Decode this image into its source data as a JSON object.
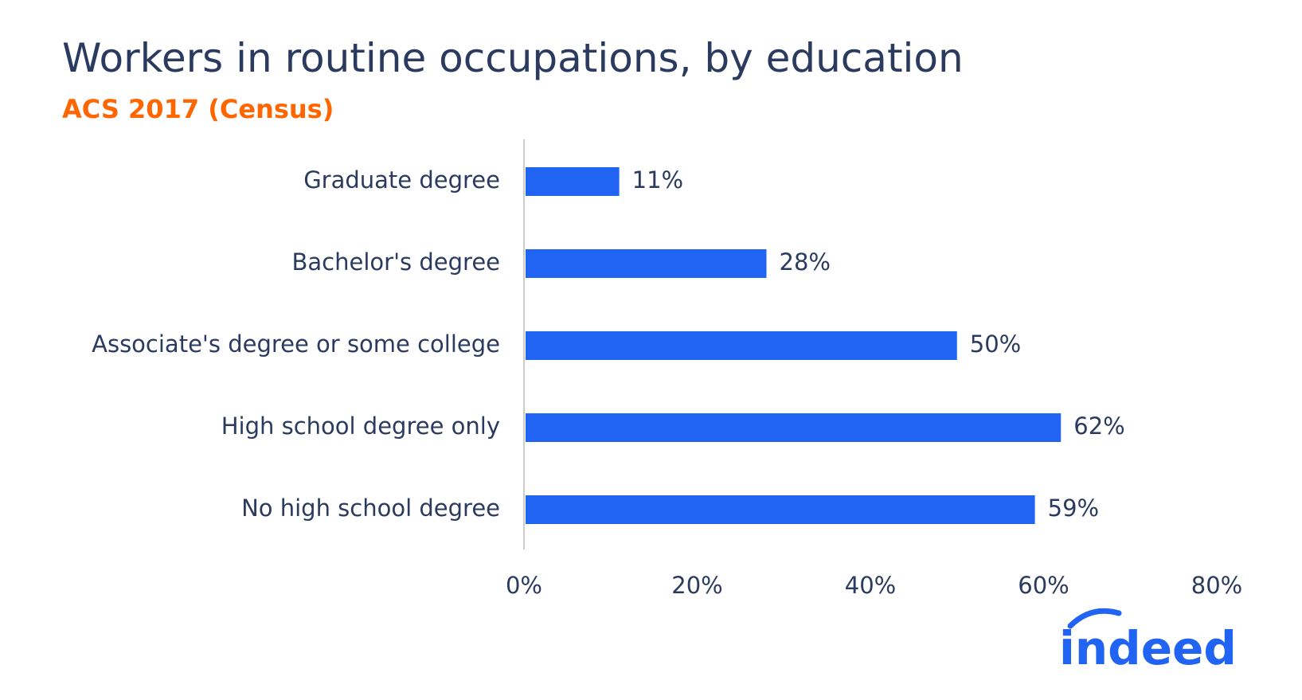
{
  "chart_data": {
    "type": "bar",
    "orientation": "horizontal",
    "title": "Workers in routine occupations, by education",
    "subtitle": "ACS 2017 (Census)",
    "categories": [
      "Graduate degree",
      "Bachelor's degree",
      "Associate's degree or some college",
      "High school degree only",
      "No high school degree"
    ],
    "values": [
      11,
      28,
      50,
      62,
      59
    ],
    "value_labels": [
      "11%",
      "28%",
      "50%",
      "62%",
      "59%"
    ],
    "xlim": [
      0,
      80
    ],
    "x_ticks": [
      0,
      20,
      40,
      60,
      80
    ],
    "x_tick_labels": [
      "0%",
      "20%",
      "40%",
      "60%",
      "80%"
    ],
    "grid": false,
    "bar_color": "#2164f3"
  },
  "brand": {
    "logo_text": "indeed",
    "logo_color": "#2164f3"
  },
  "colors": {
    "title": "#2a3b5f",
    "subtitle": "#ff6600",
    "axis": "#cccccc"
  }
}
